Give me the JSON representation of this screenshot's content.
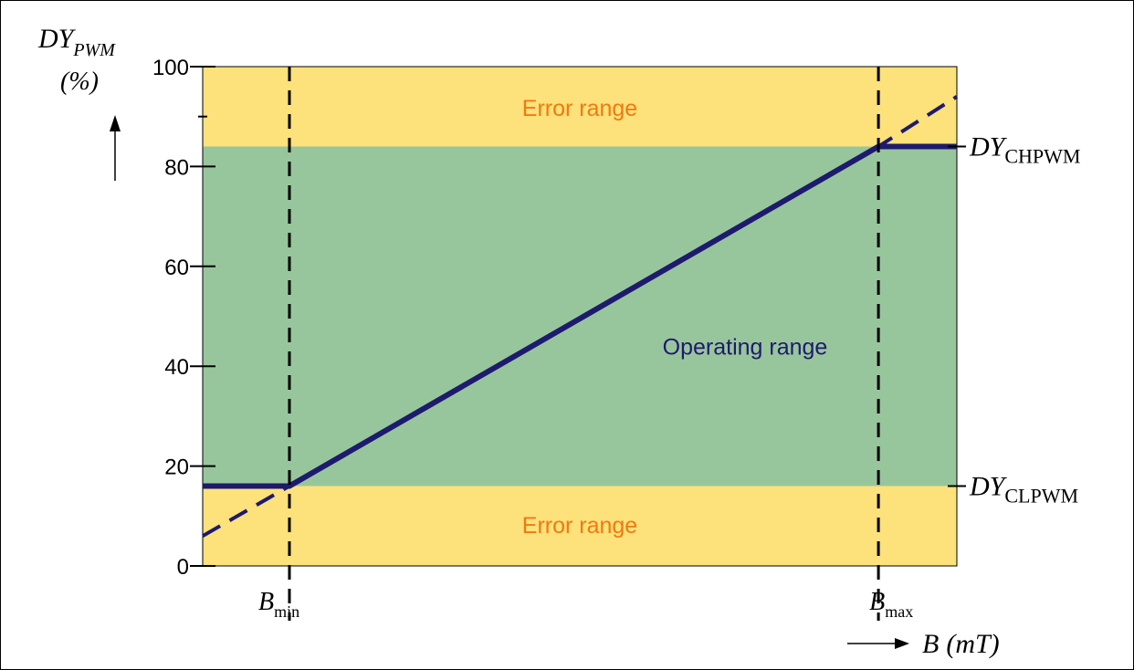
{
  "colors": {
    "error_band": "#fde17a",
    "operating_band": "#98c69c",
    "curve": "#1e1a6e",
    "error_text": "#f07a10",
    "operating_text": "#1e1a6e"
  },
  "chart_data": {
    "type": "line",
    "ylabel_main": "DY",
    "ylabel_sub": "PWM",
    "ylabel_unit": "(%)",
    "xlabel_main": "B",
    "xlabel_unit": "(mT)",
    "ylim": [
      0,
      100
    ],
    "yticks": [
      0,
      20,
      40,
      60,
      80,
      100
    ],
    "ytick_labels": [
      "0",
      "20",
      "40",
      "60",
      "80",
      "100"
    ],
    "minor_ytick": 90,
    "xlim": [
      0,
      100
    ],
    "clamp_low": 16,
    "clamp_high": 84,
    "bmin_x": 11.5,
    "bmax_x": 89.6,
    "bands": [
      {
        "name": "Error range",
        "from": 84,
        "to": 100,
        "kind": "error"
      },
      {
        "name": "Operating range",
        "from": 16,
        "to": 84,
        "kind": "operating"
      },
      {
        "name": "Error range",
        "from": 0,
        "to": 16,
        "kind": "error"
      }
    ],
    "solid_curve": [
      [
        0,
        16
      ],
      [
        11.5,
        16
      ],
      [
        89.6,
        84
      ],
      [
        100,
        84
      ]
    ],
    "dashed_extension": [
      [
        0,
        6
      ],
      [
        11.5,
        16
      ],
      [
        89.6,
        84
      ],
      [
        100,
        94
      ]
    ],
    "annotations": {
      "error_top": "Error range",
      "operating": "Operating range",
      "error_bottom": "Error range",
      "high_label_main": "DY",
      "high_label_sub": "CHPWM",
      "low_label_main": "DY",
      "low_label_sub": "CLPWM",
      "bmin_main": "B",
      "bmin_sub": "min",
      "bmax_main": "B",
      "bmax_sub": "max"
    }
  }
}
